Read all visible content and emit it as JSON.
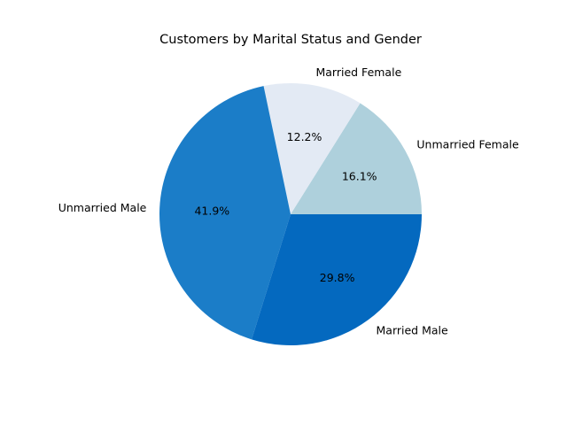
{
  "chart_data": {
    "type": "pie",
    "title": "Customers by Marital Status and Gender",
    "start_angle_deg": 0,
    "direction": "counterclockwise",
    "slices": [
      {
        "label": "Unmarried Female",
        "value": 16.1,
        "pct_label": "16.1%",
        "color": "#aed0dc"
      },
      {
        "label": "Married Female",
        "value": 12.2,
        "pct_label": "12.2%",
        "color": "#e3eaf4"
      },
      {
        "label": "Unmarried Male",
        "value": 41.9,
        "pct_label": "41.9%",
        "color": "#1b7dc8"
      },
      {
        "label": "Married Male",
        "value": 29.8,
        "pct_label": "29.8%",
        "color": "#0469bf"
      }
    ]
  }
}
